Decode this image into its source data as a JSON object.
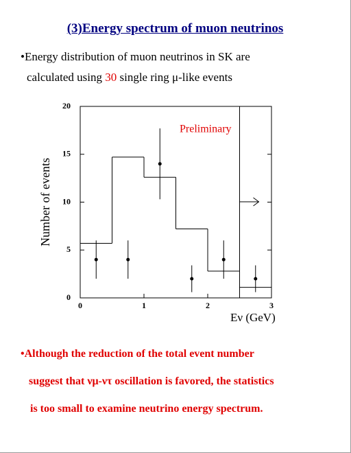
{
  "header": {
    "title": "(3)Energy spectrum of muon neutrinos"
  },
  "bullets": [
    {
      "lines": [
        "Energy distribution of muon neutrinos in SK are",
        "calculated using ",
        " single ring μ-like events"
      ],
      "highlight": "30"
    },
    {
      "lines": [
        "Although the reduction of the total event number",
        "suggest that νμ-ντ oscillation is favored, the statistics",
        "is too small to examine neutrino energy spectrum."
      ]
    }
  ],
  "chart_data": {
    "type": "histogram",
    "y_label": "Number of events",
    "x_label": "Eν (GeV)",
    "annotation": "Preliminary",
    "bins": [
      0,
      0.5,
      1,
      1.5,
      2,
      2.5,
      3
    ],
    "counts": [
      5.7,
      14.7,
      12.6,
      7.2,
      2.8,
      1.1
    ],
    "points": {
      "x": [
        0.25,
        0.75,
        1.25,
        1.75,
        2.25,
        2.75
      ],
      "values": [
        4,
        4,
        14,
        2,
        4,
        2
      ],
      "errors": [
        2,
        2,
        3.7,
        1.4,
        2,
        1.4
      ]
    },
    "cut": 2.5,
    "xlim": [
      0,
      3
    ],
    "ylim": [
      0,
      20
    ],
    "xticks": [
      0,
      1,
      2,
      3
    ],
    "yticks": [
      0,
      5,
      10,
      15,
      20
    ]
  }
}
